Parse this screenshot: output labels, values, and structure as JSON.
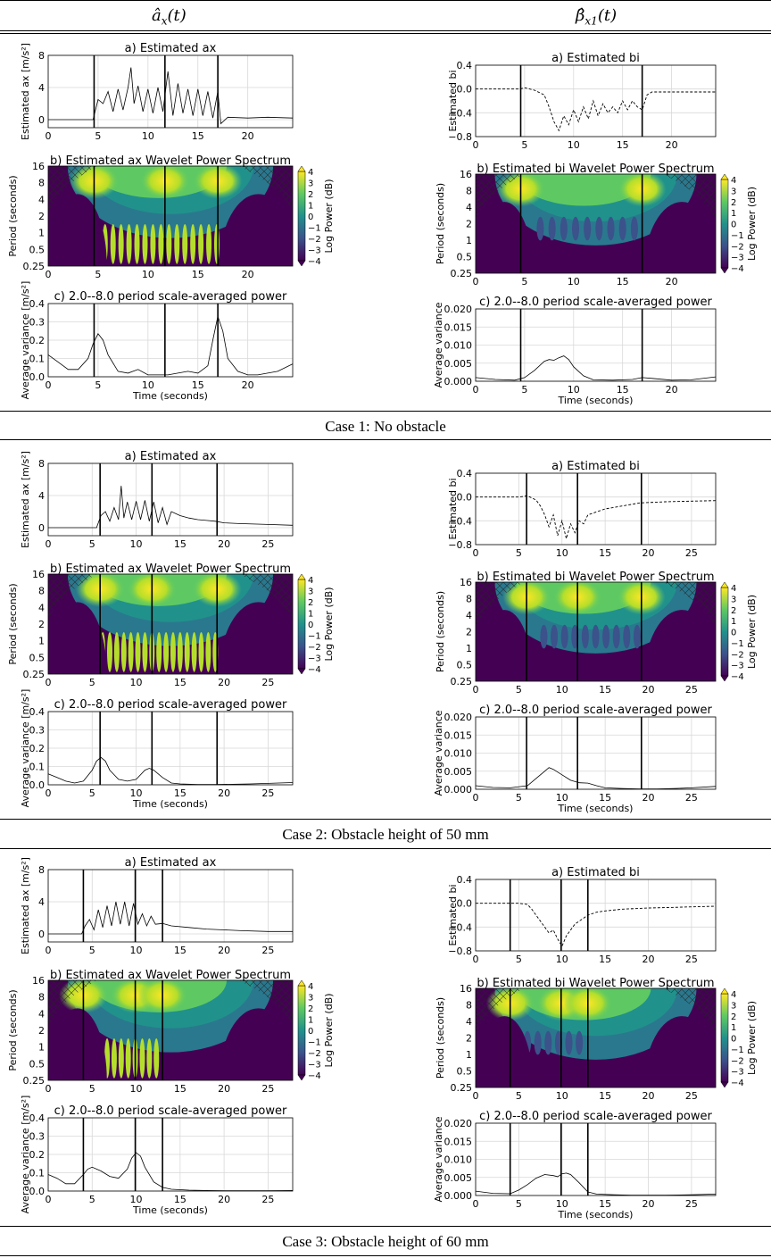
{
  "header": {
    "left": "â",
    "left_sub": "x",
    "left_arg": "(t)",
    "right": "β̂",
    "right_sub": "x1",
    "right_arg": "(t)"
  },
  "chart_data": [
    {
      "case": "Case 1: No obstacle",
      "xlim": [
        0,
        24.5
      ],
      "xticks": [
        0,
        5,
        10,
        15,
        20
      ],
      "events": [
        4.6,
        11.7,
        17.0
      ],
      "events_bi": [
        4.6,
        17.0
      ],
      "ax": {
        "type": "line",
        "title": "a) Estimated ax",
        "ylabel": "Estimated ax  [m/s²]",
        "ylim": [
          -1,
          8
        ],
        "yticks": [
          0,
          4,
          8
        ],
        "x": [
          0,
          4.5,
          5,
          5.5,
          6,
          6.5,
          7,
          7.5,
          8,
          8.3,
          8.6,
          9,
          9.5,
          10,
          10.5,
          11,
          11.5,
          12,
          12.5,
          13,
          13.5,
          14,
          14.5,
          15,
          15.5,
          16,
          16.5,
          17,
          17.3,
          18,
          20,
          22,
          24.5
        ],
        "y": [
          0,
          0,
          2.5,
          2.0,
          3.5,
          1.0,
          3.8,
          1.2,
          4.0,
          6.5,
          2.0,
          4.2,
          1.0,
          3.8,
          0.8,
          4.0,
          1.0,
          6.0,
          0.5,
          4.5,
          0.8,
          3.8,
          0.5,
          3.8,
          0.5,
          3.5,
          0.2,
          3.5,
          -0.5,
          0.3,
          0.2,
          0.3,
          0.2
        ]
      },
      "bi": {
        "type": "line",
        "title": "a) Estimated bi",
        "ylabel": "Estimated bi",
        "ylim": [
          -0.8,
          0.4
        ],
        "yticks": [
          0.4,
          0.0,
          -0.4,
          -0.8
        ],
        "yticklabels": [
          "0.4",
          "0.0",
          "−0.4",
          "−0.8"
        ],
        "x": [
          0,
          4.5,
          5,
          6,
          7,
          7.5,
          8,
          8.5,
          9,
          9.5,
          10,
          10.5,
          11,
          11.5,
          12,
          12.5,
          13,
          13.5,
          14,
          14.5,
          15,
          15.5,
          16,
          16.5,
          17,
          17.5,
          18,
          20,
          24.5
        ],
        "y": [
          0,
          0,
          0.02,
          -0.02,
          -0.1,
          -0.3,
          -0.55,
          -0.7,
          -0.45,
          -0.6,
          -0.35,
          -0.55,
          -0.3,
          -0.5,
          -0.2,
          -0.45,
          -0.25,
          -0.4,
          -0.3,
          -0.4,
          -0.2,
          -0.35,
          -0.2,
          -0.3,
          -0.35,
          -0.1,
          -0.05,
          -0.05,
          -0.05
        ]
      },
      "wps_ax": {
        "title": "b) Estimated ax Wavelet Power Spectrum"
      },
      "wps_bi": {
        "title": "b) Estimated bi Wavelet Power Spectrum"
      },
      "sa_ax": {
        "type": "line",
        "title": "c) 2.0--8.0 period scale-averaged power",
        "ylabel": "Average variance  [m/s²]",
        "ylim": [
          0,
          0.4
        ],
        "yticks": [
          0.0,
          0.1,
          0.2,
          0.3,
          0.4
        ],
        "x": [
          0,
          1,
          2,
          3,
          4,
          4.5,
          5,
          5.5,
          6,
          7,
          8,
          9,
          10,
          11,
          12,
          13,
          14,
          15,
          16,
          16.5,
          17,
          17.5,
          18,
          19,
          20,
          21,
          22,
          23,
          24.5
        ],
        "y": [
          0.12,
          0.08,
          0.04,
          0.04,
          0.1,
          0.18,
          0.235,
          0.2,
          0.12,
          0.03,
          0.02,
          0.04,
          0.01,
          0.01,
          0.01,
          0.02,
          0.03,
          0.02,
          0.06,
          0.2,
          0.33,
          0.25,
          0.1,
          0.03,
          0.01,
          0.01,
          0.02,
          0.03,
          0.07
        ]
      },
      "sa_bi": {
        "type": "line",
        "title": "c) 2.0--8.0 period scale-averaged power",
        "ylabel": "Average variance",
        "ylim": [
          0,
          0.02
        ],
        "yticks": [
          0.0,
          0.005,
          0.01,
          0.015,
          0.02
        ],
        "x": [
          0,
          2,
          4,
          5,
          6,
          7,
          7.5,
          8,
          8.5,
          9,
          9.5,
          10,
          11,
          12,
          14,
          16,
          17,
          18,
          20,
          22,
          24.5
        ],
        "y": [
          0.001,
          0.0005,
          0.0003,
          0.001,
          0.003,
          0.0055,
          0.006,
          0.0058,
          0.0065,
          0.007,
          0.006,
          0.004,
          0.0015,
          0.0004,
          0.0003,
          0.0005,
          0.001,
          0.0008,
          0.0003,
          0.0004,
          0.0012
        ]
      },
      "xlabel": "Time (seconds)"
    },
    {
      "case": "Case 2: Obstacle height of 50 mm",
      "xlim": [
        0,
        27.8
      ],
      "xticks": [
        0,
        5,
        10,
        15,
        20,
        25
      ],
      "events": [
        5.9,
        11.8,
        19.2
      ],
      "events_bi": [
        5.9,
        11.8,
        19.2
      ],
      "ax": {
        "type": "line",
        "title": "a) Estimated ax",
        "ylabel": "Estimated ax  [m/s²]",
        "ylim": [
          -1,
          8
        ],
        "yticks": [
          0,
          4,
          8
        ],
        "x": [
          0,
          5.5,
          6,
          6.5,
          7,
          7.5,
          8,
          8.3,
          8.6,
          9,
          9.5,
          10,
          10.5,
          11,
          11.5,
          12,
          12.5,
          13,
          13.5,
          14,
          15,
          16,
          17,
          18,
          19,
          20,
          22,
          25,
          27.8
        ],
        "y": [
          0,
          0,
          1.5,
          2.0,
          0.8,
          2.5,
          1.0,
          5.2,
          1.2,
          3.2,
          1.0,
          3.3,
          1.0,
          3.4,
          0.8,
          3.2,
          0.6,
          2.5,
          0.4,
          2.0,
          1.5,
          1.2,
          1.0,
          0.9,
          0.8,
          0.6,
          0.5,
          0.4,
          0.3
        ]
      },
      "bi": {
        "type": "line",
        "title": "a) Estimated bi",
        "ylabel": "Estimated bi",
        "ylim": [
          -0.8,
          0.4
        ],
        "yticks": [
          0.4,
          0.0,
          -0.4,
          -0.8
        ],
        "yticklabels": [
          "0.4",
          "0.0",
          "−0.4",
          "−0.8"
        ],
        "x": [
          0,
          5,
          6,
          7,
          7.5,
          8,
          8.5,
          9,
          9.5,
          10,
          10.5,
          11,
          11.5,
          12,
          12.5,
          13,
          14,
          15,
          17,
          19,
          22,
          25,
          27.8
        ],
        "y": [
          0,
          0,
          0.02,
          -0.05,
          -0.15,
          -0.3,
          -0.5,
          -0.3,
          -0.65,
          -0.4,
          -0.7,
          -0.45,
          -0.6,
          -0.4,
          -0.45,
          -0.3,
          -0.25,
          -0.2,
          -0.15,
          -0.1,
          -0.08,
          -0.07,
          -0.06
        ]
      },
      "wps_ax": {
        "title": "b) Estimated ax Wavelet Power Spectrum"
      },
      "wps_bi": {
        "title": "b) Estimated bi Wavelet Power Spectrum"
      },
      "sa_ax": {
        "type": "line",
        "title": "c) 2.0--8.0 period scale-averaged power",
        "ylabel": "Average variance  [m/s²]",
        "ylim": [
          0,
          0.4
        ],
        "yticks": [
          0.0,
          0.1,
          0.2,
          0.3,
          0.4
        ],
        "x": [
          0,
          1,
          2,
          3,
          4,
          5,
          5.5,
          6,
          6.5,
          7,
          8,
          9,
          10,
          11,
          11.5,
          12,
          13,
          14,
          15,
          17,
          19,
          21,
          23,
          25,
          27.8
        ],
        "y": [
          0.06,
          0.04,
          0.02,
          0.01,
          0.02,
          0.08,
          0.13,
          0.15,
          0.13,
          0.08,
          0.03,
          0.02,
          0.03,
          0.08,
          0.09,
          0.08,
          0.04,
          0.01,
          0.005,
          0.002,
          0.002,
          0.003,
          0.005,
          0.008,
          0.012
        ]
      },
      "sa_bi": {
        "type": "line",
        "title": "c) 2.0--8.0 period scale-averaged power",
        "ylabel": "Average variance",
        "ylim": [
          0,
          0.02
        ],
        "yticks": [
          0.0,
          0.005,
          0.01,
          0.015,
          0.02
        ],
        "x": [
          0,
          2,
          4,
          6,
          7,
          8,
          8.5,
          9,
          10,
          11,
          12,
          13,
          14,
          15,
          17,
          19,
          21,
          23,
          25,
          27.8
        ],
        "y": [
          0.001,
          0.0005,
          0.0004,
          0.001,
          0.003,
          0.005,
          0.006,
          0.0055,
          0.004,
          0.0025,
          0.0018,
          0.0017,
          0.001,
          0.0004,
          0.0002,
          0.0001,
          0.0001,
          0.0002,
          0.0004,
          0.0008
        ]
      },
      "xlabel": "Time (seconds)"
    },
    {
      "case": "Case 3: Obstacle height of 60 mm",
      "xlim": [
        0,
        27.8
      ],
      "xticks": [
        0,
        5,
        10,
        15,
        20,
        25
      ],
      "events": [
        4.0,
        9.9,
        13.0
      ],
      "events_bi": [
        4.0,
        9.9,
        13.0
      ],
      "ax": {
        "type": "line",
        "title": "a) Estimated ax",
        "ylabel": "Estimated ax  [m/s²]",
        "ylim": [
          -1,
          8
        ],
        "yticks": [
          0,
          4,
          8
        ],
        "x": [
          0,
          3.8,
          4.2,
          4.7,
          5.2,
          5.7,
          6.2,
          6.7,
          7.2,
          7.7,
          8.2,
          8.7,
          9.2,
          9.7,
          10.2,
          10.7,
          11.2,
          11.7,
          12.2,
          13,
          14,
          16,
          18,
          20,
          22,
          25,
          27.8
        ],
        "y": [
          0,
          0,
          1.0,
          1.8,
          0.5,
          3.0,
          0.8,
          3.5,
          1.0,
          4.0,
          1.2,
          4.0,
          1.0,
          3.8,
          1.2,
          2.5,
          1.0,
          2.2,
          1.2,
          1.3,
          1.0,
          0.8,
          0.6,
          0.5,
          0.4,
          0.3,
          0.3
        ]
      },
      "bi": {
        "type": "line",
        "title": "a) Estimated bi",
        "ylabel": "Estimated bi",
        "ylim": [
          -0.8,
          0.4
        ],
        "yticks": [
          0.4,
          0.0,
          -0.4,
          -0.8
        ],
        "yticklabels": [
          "0.4",
          "0.0",
          "−0.4",
          "−0.8"
        ],
        "x": [
          0,
          5,
          6,
          6.5,
          7,
          7.5,
          8,
          8.5,
          9,
          9.5,
          10,
          10.5,
          11,
          11.5,
          12,
          13,
          14,
          15,
          17,
          20,
          23,
          25,
          27.8
        ],
        "y": [
          0,
          0,
          -0.02,
          -0.1,
          -0.2,
          -0.3,
          -0.4,
          -0.5,
          -0.45,
          -0.6,
          -0.72,
          -0.55,
          -0.45,
          -0.35,
          -0.3,
          -0.2,
          -0.15,
          -0.13,
          -0.1,
          -0.08,
          -0.07,
          -0.06,
          -0.05
        ]
      },
      "wps_ax": {
        "title": "b) Estimated ax Wavelet Power Spectrum"
      },
      "wps_bi": {
        "title": "b) Estimated bi Wavelet Power Spectrum"
      },
      "sa_ax": {
        "type": "line",
        "title": "c) 2.0--8.0 period scale-averaged power",
        "ylabel": "Average variance  [m/s²]",
        "ylim": [
          0,
          0.4
        ],
        "yticks": [
          0.0,
          0.1,
          0.2,
          0.3,
          0.4
        ],
        "x": [
          0,
          1,
          2,
          3,
          4,
          4.5,
          5,
          6,
          7,
          8,
          9,
          9.5,
          10,
          10.5,
          11,
          12,
          13,
          14,
          16,
          18,
          20,
          22,
          25,
          27.8
        ],
        "y": [
          0.09,
          0.07,
          0.04,
          0.04,
          0.09,
          0.12,
          0.13,
          0.11,
          0.08,
          0.07,
          0.12,
          0.18,
          0.21,
          0.19,
          0.13,
          0.05,
          0.02,
          0.01,
          0.005,
          0.003,
          0.002,
          0.002,
          0.002,
          0.003
        ]
      },
      "sa_bi": {
        "type": "line",
        "title": "c) 2.0--8.0 period scale-averaged power",
        "ylabel": "Average variance",
        "ylim": [
          0,
          0.02
        ],
        "yticks": [
          0.0,
          0.005,
          0.01,
          0.015,
          0.02
        ],
        "x": [
          0,
          2,
          4,
          5,
          6,
          7,
          8,
          9,
          9.5,
          10,
          10.5,
          11,
          12,
          13,
          14,
          16,
          18,
          20,
          22,
          25,
          27.8
        ],
        "y": [
          0.0012,
          0.0006,
          0.0005,
          0.0015,
          0.003,
          0.0048,
          0.0058,
          0.0055,
          0.0052,
          0.006,
          0.0062,
          0.0058,
          0.0035,
          0.001,
          0.0004,
          0.0002,
          0.0001,
          0.0001,
          0.0001,
          0.0002,
          0.0004
        ]
      },
      "xlabel": "Time (seconds)"
    }
  ],
  "colorbar": {
    "label": "Log Power (dB)",
    "ticks": [
      "4",
      "3",
      "2",
      "1",
      "0",
      "−1",
      "−2",
      "−3",
      "−4"
    ]
  },
  "wps_yticks": [
    "16",
    "8",
    "4",
    "2",
    "1",
    "0.5",
    "0.25"
  ],
  "wps_ylabel": "Period (seconds)",
  "colors": {
    "yellow": "#fde725",
    "green": "#5ec962",
    "teal": "#21918c",
    "blue": "#3b528b",
    "purple": "#440154"
  }
}
